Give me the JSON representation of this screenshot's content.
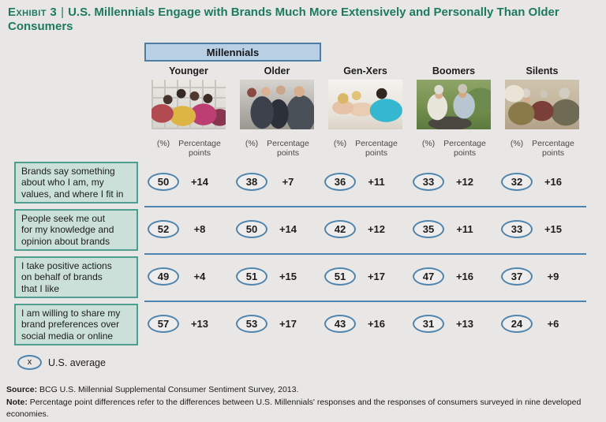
{
  "title": {
    "exhibit_label": "Exhibit 3",
    "separator": "|",
    "text": "U.S. Millennials Engage with Brands Much More Extensively and Personally Than Older Consumers"
  },
  "group_header": {
    "label": "Millennials"
  },
  "subheaders": {
    "percent": "(%)",
    "points": "Percentage\npoints"
  },
  "columns": [
    {
      "label": "Younger",
      "photo": "younger-millennials-group-photo"
    },
    {
      "label": "Older",
      "photo": "older-millennials-business-group-photo"
    },
    {
      "label": "Gen-Xers",
      "photo": "gen-xers-group-photo"
    },
    {
      "label": "Boomers",
      "photo": "boomers-couple-outdoors-photo"
    },
    {
      "label": "Silents",
      "photo": "silents-seniors-group-photo"
    }
  ],
  "rows": [
    {
      "label": "Brands say something\nabout who I am, my\nvalues, and where I fit in",
      "values": [
        {
          "pct": "50",
          "pts": "+14"
        },
        {
          "pct": "38",
          "pts": "+7"
        },
        {
          "pct": "36",
          "pts": "+11"
        },
        {
          "pct": "33",
          "pts": "+12"
        },
        {
          "pct": "32",
          "pts": "+16"
        }
      ]
    },
    {
      "label": "People seek me out\nfor my knowledge and\nopinion about brands",
      "values": [
        {
          "pct": "52",
          "pts": "+8"
        },
        {
          "pct": "50",
          "pts": "+14"
        },
        {
          "pct": "42",
          "pts": "+12"
        },
        {
          "pct": "35",
          "pts": "+11"
        },
        {
          "pct": "33",
          "pts": "+15"
        }
      ]
    },
    {
      "label": "I take positive actions\non behalf of brands\nthat I like",
      "values": [
        {
          "pct": "49",
          "pts": "+4"
        },
        {
          "pct": "51",
          "pts": "+15"
        },
        {
          "pct": "51",
          "pts": "+17"
        },
        {
          "pct": "47",
          "pts": "+16"
        },
        {
          "pct": "37",
          "pts": "+9"
        }
      ]
    },
    {
      "label": "I am willing to share my\nbrand preferences over\nsocial media or online",
      "values": [
        {
          "pct": "57",
          "pts": "+13"
        },
        {
          "pct": "53",
          "pts": "+17"
        },
        {
          "pct": "43",
          "pts": "+16"
        },
        {
          "pct": "31",
          "pts": "+13"
        },
        {
          "pct": "24",
          "pts": "+6"
        }
      ]
    }
  ],
  "legend": {
    "symbol": "x",
    "label": "U.S. average"
  },
  "footer": {
    "source_label": "Source:",
    "source_text": "BCG U.S. Millennial Supplemental Consumer Sentiment Survey, 2013.",
    "note_label": "Note:",
    "note_text": "Percentage point differences refer to the differences between U.S. Millennials' responses and the responses of consumers surveyed in nine developed economies."
  },
  "colors": {
    "background": "#e8e7e5",
    "title_green": "#1d7a60",
    "millennials_box_bg": "#b9cfe3",
    "millennials_box_border": "#4e7ca3",
    "row_label_bg": "#cbe0d8",
    "row_label_border": "#4f9e8f",
    "ellipse_stroke": "#4e84ad",
    "divider": "#4e84ad"
  },
  "chart_data": {
    "type": "table",
    "title": "U.S. Millennials Engage with Brands Much More Extensively and Personally Than Older Consumers",
    "columns": [
      "Younger Millennials",
      "Older Millennials",
      "Gen-Xers",
      "Boomers",
      "Silents"
    ],
    "metrics": [
      "U.S. average (%)",
      "Percentage-point difference vs consumers in nine developed economies"
    ],
    "series": [
      {
        "name": "Brands say something about who I am, my values, and where I fit in",
        "pct": [
          50,
          38,
          36,
          33,
          32
        ],
        "pts": [
          14,
          7,
          11,
          12,
          16
        ]
      },
      {
        "name": "People seek me out for my knowledge and opinion about brands",
        "pct": [
          52,
          50,
          42,
          35,
          33
        ],
        "pts": [
          8,
          14,
          12,
          11,
          15
        ]
      },
      {
        "name": "I take positive actions on behalf of brands that I like",
        "pct": [
          49,
          51,
          51,
          47,
          37
        ],
        "pts": [
          4,
          15,
          17,
          16,
          9
        ]
      },
      {
        "name": "I am willing to share my brand preferences over social media or online",
        "pct": [
          57,
          53,
          43,
          31,
          24
        ],
        "pts": [
          13,
          17,
          16,
          13,
          6
        ]
      }
    ],
    "legend_note": "Circled values are U.S. averages (%)"
  }
}
